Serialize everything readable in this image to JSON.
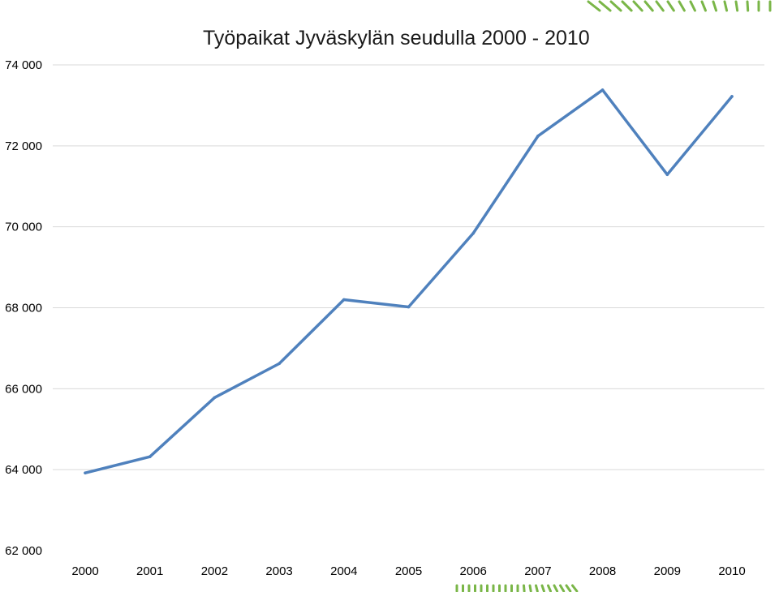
{
  "chart_data": {
    "type": "line",
    "title": "Työpaikat Jyväskylän seudulla 2000 - 2010",
    "xlabel": "",
    "ylabel": "",
    "categories": [
      "2000",
      "2001",
      "2002",
      "2003",
      "2004",
      "2005",
      "2006",
      "2007",
      "2008",
      "2009",
      "2010"
    ],
    "series": [
      {
        "values": [
          63920,
          64320,
          65780,
          66620,
          68200,
          68020,
          69840,
          72240,
          73380,
          71290,
          73220
        ],
        "color": "#4f81bd"
      }
    ],
    "ylim": [
      62000,
      74000
    ],
    "yticks": [
      "74 000",
      "72 000",
      "70 000",
      "68 000",
      "66 000",
      "64 000",
      "62 000"
    ],
    "grid": true,
    "legend": "none"
  },
  "decoration": {
    "accent_color": "#7ab648"
  }
}
